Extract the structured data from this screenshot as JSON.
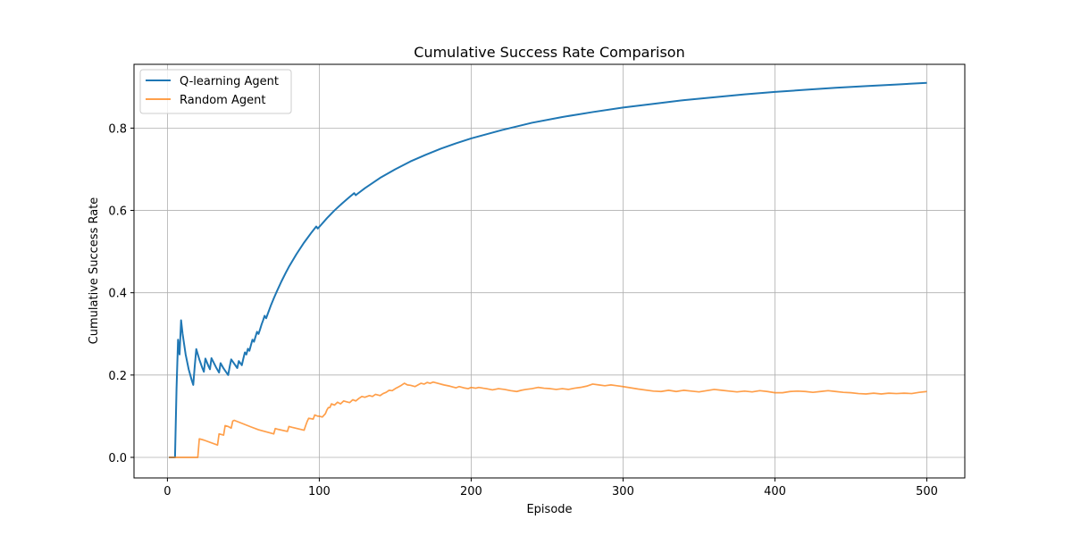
{
  "chart_data": {
    "type": "line",
    "title": "Cumulative Success Rate Comparison",
    "xlabel": "Episode",
    "ylabel": "Cumulative Success Rate",
    "xlim": [
      -22,
      525
    ],
    "ylim": [
      -0.05,
      0.955
    ],
    "xticks": [
      0,
      100,
      200,
      300,
      400,
      500
    ],
    "yticks": [
      0.0,
      0.2,
      0.4,
      0.6,
      0.8
    ],
    "xtick_labels": [
      "0",
      "100",
      "200",
      "300",
      "400",
      "500"
    ],
    "ytick_labels": [
      "0.0",
      "0.2",
      "0.4",
      "0.6",
      "0.8"
    ],
    "grid": true,
    "legend_position": "top-left",
    "series": [
      {
        "name": "Q-learning Agent",
        "color": "#1f77b4",
        "points": [
          [
            1,
            0
          ],
          [
            5,
            0
          ],
          [
            6,
            0.167
          ],
          [
            7,
            0.286
          ],
          [
            8,
            0.25
          ],
          [
            9,
            0.333
          ],
          [
            10,
            0.3
          ],
          [
            12,
            0.25
          ],
          [
            14,
            0.214
          ],
          [
            16,
            0.1875
          ],
          [
            17,
            0.176
          ],
          [
            18,
            0.222
          ],
          [
            19,
            0.263
          ],
          [
            21,
            0.238
          ],
          [
            23,
            0.217
          ],
          [
            24,
            0.208
          ],
          [
            25,
            0.24
          ],
          [
            27,
            0.222
          ],
          [
            28,
            0.214
          ],
          [
            29,
            0.241
          ],
          [
            32,
            0.219
          ],
          [
            34,
            0.206
          ],
          [
            35,
            0.229
          ],
          [
            37,
            0.216
          ],
          [
            40,
            0.2
          ],
          [
            41,
            0.22
          ],
          [
            42,
            0.238
          ],
          [
            46,
            0.217
          ],
          [
            47,
            0.234
          ],
          [
            49,
            0.224
          ],
          [
            50,
            0.24
          ],
          [
            51,
            0.255
          ],
          [
            52,
            0.25
          ],
          [
            53,
            0.264
          ],
          [
            54,
            0.259
          ],
          [
            55,
            0.273
          ],
          [
            56,
            0.286
          ],
          [
            57,
            0.281
          ],
          [
            58,
            0.293
          ],
          [
            59,
            0.305
          ],
          [
            60,
            0.3
          ],
          [
            61,
            0.311
          ],
          [
            62,
            0.323
          ],
          [
            63,
            0.333
          ],
          [
            64,
            0.344
          ],
          [
            65,
            0.338
          ],
          [
            66,
            0.348
          ],
          [
            68,
            0.368
          ],
          [
            70,
            0.386
          ],
          [
            72,
            0.403
          ],
          [
            75,
            0.427
          ],
          [
            78,
            0.449
          ],
          [
            80,
            0.463
          ],
          [
            85,
            0.494
          ],
          [
            90,
            0.522
          ],
          [
            95,
            0.547
          ],
          [
            98,
            0.561
          ],
          [
            99,
            0.556
          ],
          [
            100,
            0.56
          ],
          [
            105,
            0.581
          ],
          [
            110,
            0.6
          ],
          [
            115,
            0.617
          ],
          [
            120,
            0.633
          ],
          [
            123,
            0.642
          ],
          [
            124,
            0.637
          ],
          [
            125,
            0.64
          ],
          [
            130,
            0.654
          ],
          [
            140,
            0.679
          ],
          [
            150,
            0.7
          ],
          [
            160,
            0.719
          ],
          [
            170,
            0.735
          ],
          [
            180,
            0.75
          ],
          [
            190,
            0.763
          ],
          [
            200,
            0.775
          ],
          [
            220,
            0.795
          ],
          [
            240,
            0.813
          ],
          [
            260,
            0.827
          ],
          [
            280,
            0.839
          ],
          [
            300,
            0.85
          ],
          [
            320,
            0.859
          ],
          [
            340,
            0.868
          ],
          [
            360,
            0.875
          ],
          [
            380,
            0.882
          ],
          [
            400,
            0.888
          ],
          [
            420,
            0.893
          ],
          [
            440,
            0.898
          ],
          [
            460,
            0.902
          ],
          [
            480,
            0.906
          ],
          [
            500,
            0.91
          ]
        ]
      },
      {
        "name": "Random Agent",
        "color": "#ff7f0e",
        "points": [
          [
            1,
            0
          ],
          [
            20,
            0
          ],
          [
            21,
            0.045
          ],
          [
            24,
            0.042
          ],
          [
            33,
            0.03
          ],
          [
            34,
            0.057
          ],
          [
            37,
            0.054
          ],
          [
            38,
            0.077
          ],
          [
            40,
            0.075
          ],
          [
            42,
            0.071
          ],
          [
            43,
            0.088
          ],
          [
            44,
            0.09
          ],
          [
            55,
            0.074
          ],
          [
            60,
            0.067
          ],
          [
            70,
            0.057
          ],
          [
            71,
            0.07
          ],
          [
            73,
            0.068
          ],
          [
            79,
            0.063
          ],
          [
            80,
            0.075
          ],
          [
            82,
            0.073
          ],
          [
            90,
            0.066
          ],
          [
            91,
            0.077
          ],
          [
            92,
            0.087
          ],
          [
            93,
            0.095
          ],
          [
            96,
            0.093
          ],
          [
            97,
            0.103
          ],
          [
            99,
            0.1
          ],
          [
            100,
            0.1
          ],
          [
            102,
            0.098
          ],
          [
            104,
            0.106
          ],
          [
            105,
            0.115
          ],
          [
            106,
            0.121
          ],
          [
            107,
            0.121
          ],
          [
            108,
            0.13
          ],
          [
            110,
            0.127
          ],
          [
            112,
            0.134
          ],
          [
            114,
            0.13
          ],
          [
            116,
            0.137
          ],
          [
            118,
            0.135
          ],
          [
            120,
            0.133
          ],
          [
            122,
            0.14
          ],
          [
            124,
            0.137
          ],
          [
            126,
            0.143
          ],
          [
            128,
            0.148
          ],
          [
            130,
            0.146
          ],
          [
            133,
            0.15
          ],
          [
            135,
            0.148
          ],
          [
            137,
            0.153
          ],
          [
            140,
            0.15
          ],
          [
            142,
            0.155
          ],
          [
            144,
            0.158
          ],
          [
            146,
            0.163
          ],
          [
            148,
            0.162
          ],
          [
            150,
            0.167
          ],
          [
            152,
            0.171
          ],
          [
            154,
            0.175
          ],
          [
            156,
            0.18
          ],
          [
            158,
            0.176
          ],
          [
            160,
            0.175
          ],
          [
            163,
            0.172
          ],
          [
            165,
            0.176
          ],
          [
            167,
            0.18
          ],
          [
            169,
            0.178
          ],
          [
            171,
            0.182
          ],
          [
            173,
            0.18
          ],
          [
            175,
            0.183
          ],
          [
            178,
            0.18
          ],
          [
            182,
            0.176
          ],
          [
            186,
            0.173
          ],
          [
            190,
            0.169
          ],
          [
            192,
            0.172
          ],
          [
            195,
            0.169
          ],
          [
            198,
            0.167
          ],
          [
            200,
            0.17
          ],
          [
            203,
            0.168
          ],
          [
            205,
            0.17
          ],
          [
            208,
            0.168
          ],
          [
            210,
            0.167
          ],
          [
            214,
            0.164
          ],
          [
            218,
            0.167
          ],
          [
            222,
            0.165
          ],
          [
            226,
            0.162
          ],
          [
            230,
            0.16
          ],
          [
            233,
            0.163
          ],
          [
            236,
            0.165
          ],
          [
            240,
            0.167
          ],
          [
            244,
            0.17
          ],
          [
            248,
            0.168
          ],
          [
            252,
            0.167
          ],
          [
            256,
            0.165
          ],
          [
            260,
            0.167
          ],
          [
            264,
            0.165
          ],
          [
            268,
            0.168
          ],
          [
            272,
            0.17
          ],
          [
            276,
            0.173
          ],
          [
            280,
            0.178
          ],
          [
            284,
            0.176
          ],
          [
            288,
            0.174
          ],
          [
            292,
            0.176
          ],
          [
            296,
            0.174
          ],
          [
            300,
            0.172
          ],
          [
            310,
            0.166
          ],
          [
            320,
            0.161
          ],
          [
            325,
            0.16
          ],
          [
            330,
            0.163
          ],
          [
            335,
            0.16
          ],
          [
            340,
            0.163
          ],
          [
            345,
            0.161
          ],
          [
            350,
            0.159
          ],
          [
            355,
            0.162
          ],
          [
            360,
            0.165
          ],
          [
            365,
            0.163
          ],
          [
            370,
            0.161
          ],
          [
            375,
            0.159
          ],
          [
            380,
            0.161
          ],
          [
            385,
            0.159
          ],
          [
            390,
            0.162
          ],
          [
            395,
            0.16
          ],
          [
            400,
            0.157
          ],
          [
            405,
            0.157
          ],
          [
            410,
            0.16
          ],
          [
            415,
            0.161
          ],
          [
            420,
            0.16
          ],
          [
            425,
            0.158
          ],
          [
            430,
            0.16
          ],
          [
            435,
            0.162
          ],
          [
            440,
            0.16
          ],
          [
            445,
            0.158
          ],
          [
            450,
            0.157
          ],
          [
            455,
            0.155
          ],
          [
            460,
            0.154
          ],
          [
            465,
            0.156
          ],
          [
            470,
            0.154
          ],
          [
            475,
            0.156
          ],
          [
            480,
            0.155
          ],
          [
            485,
            0.156
          ],
          [
            490,
            0.155
          ],
          [
            495,
            0.158
          ],
          [
            500,
            0.16
          ]
        ]
      }
    ]
  }
}
